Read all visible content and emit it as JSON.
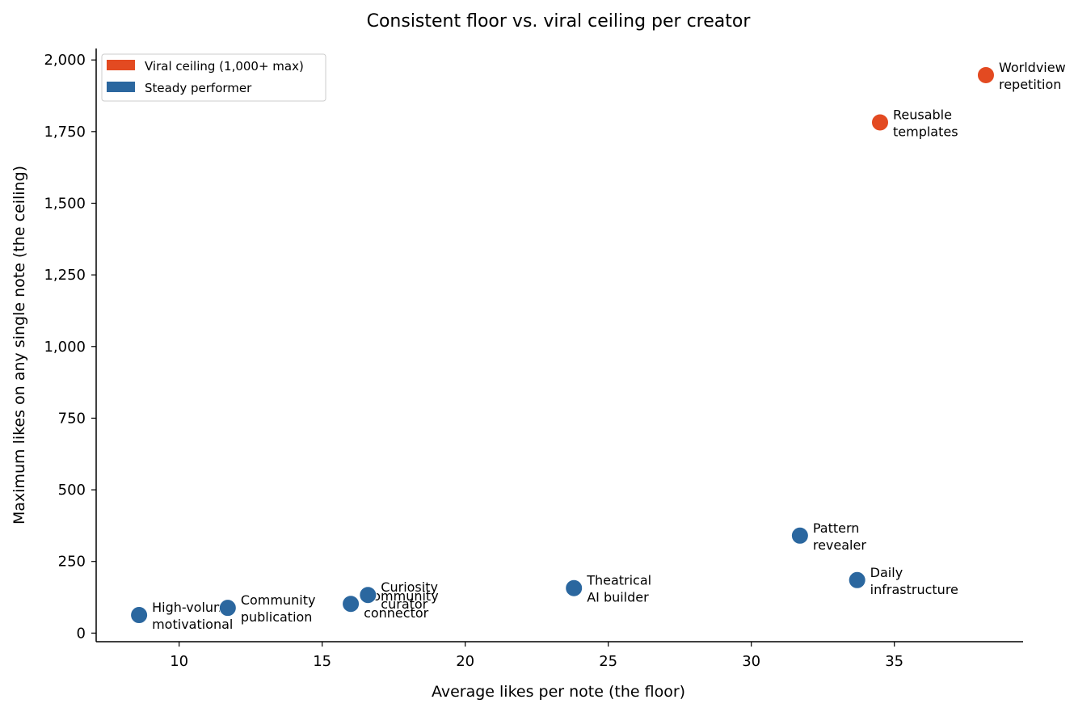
{
  "chart_data": {
    "type": "scatter",
    "title": "Consistent floor vs. viral ceiling per creator",
    "xlabel": "Average likes per note  (the floor)",
    "ylabel": "Maximum likes on any single note  (the ceiling)",
    "xlim": [
      7.1,
      39.5
    ],
    "ylim": [
      -30,
      2040
    ],
    "xticks": [
      10,
      15,
      20,
      25,
      30,
      35
    ],
    "xtick_labels": [
      "10",
      "15",
      "20",
      "25",
      "30",
      "35"
    ],
    "yticks": [
      0,
      250,
      500,
      750,
      1000,
      1250,
      1500,
      1750,
      2000
    ],
    "ytick_labels": [
      "0",
      "250",
      "500",
      "750",
      "1,000",
      "1,250",
      "1,500",
      "1,750",
      "2,000"
    ],
    "grid": false,
    "legend_position": "top-left",
    "legend": [
      {
        "label": "Viral ceiling (1,000+ max)",
        "color": "#e34a21"
      },
      {
        "label": "Steady performer",
        "color": "#2b679f"
      }
    ],
    "colors": {
      "viral": "#e34a21",
      "steady": "#2b679f"
    },
    "points": [
      {
        "x": 8.6,
        "y": 63,
        "label": [
          "High-volume",
          "motivational"
        ],
        "category": "steady"
      },
      {
        "x": 11.7,
        "y": 88,
        "label": [
          "Community",
          "publication"
        ],
        "category": "steady"
      },
      {
        "x": 16.0,
        "y": 102,
        "label": [
          "Community",
          "connector"
        ],
        "category": "steady"
      },
      {
        "x": 16.6,
        "y": 133,
        "label": [
          "Curiosity",
          "curator"
        ],
        "category": "steady"
      },
      {
        "x": 23.8,
        "y": 157,
        "label": [
          "Theatrical",
          "AI builder"
        ],
        "category": "steady"
      },
      {
        "x": 31.7,
        "y": 340,
        "label": [
          "Pattern",
          "revealer"
        ],
        "category": "steady"
      },
      {
        "x": 33.7,
        "y": 185,
        "label": [
          "Daily",
          "infrastructure"
        ],
        "category": "steady"
      },
      {
        "x": 34.5,
        "y": 1782,
        "label": [
          "Reusable",
          "templates"
        ],
        "category": "viral"
      },
      {
        "x": 38.2,
        "y": 1947,
        "label": [
          "Worldview",
          "repetition"
        ],
        "category": "viral"
      }
    ]
  }
}
